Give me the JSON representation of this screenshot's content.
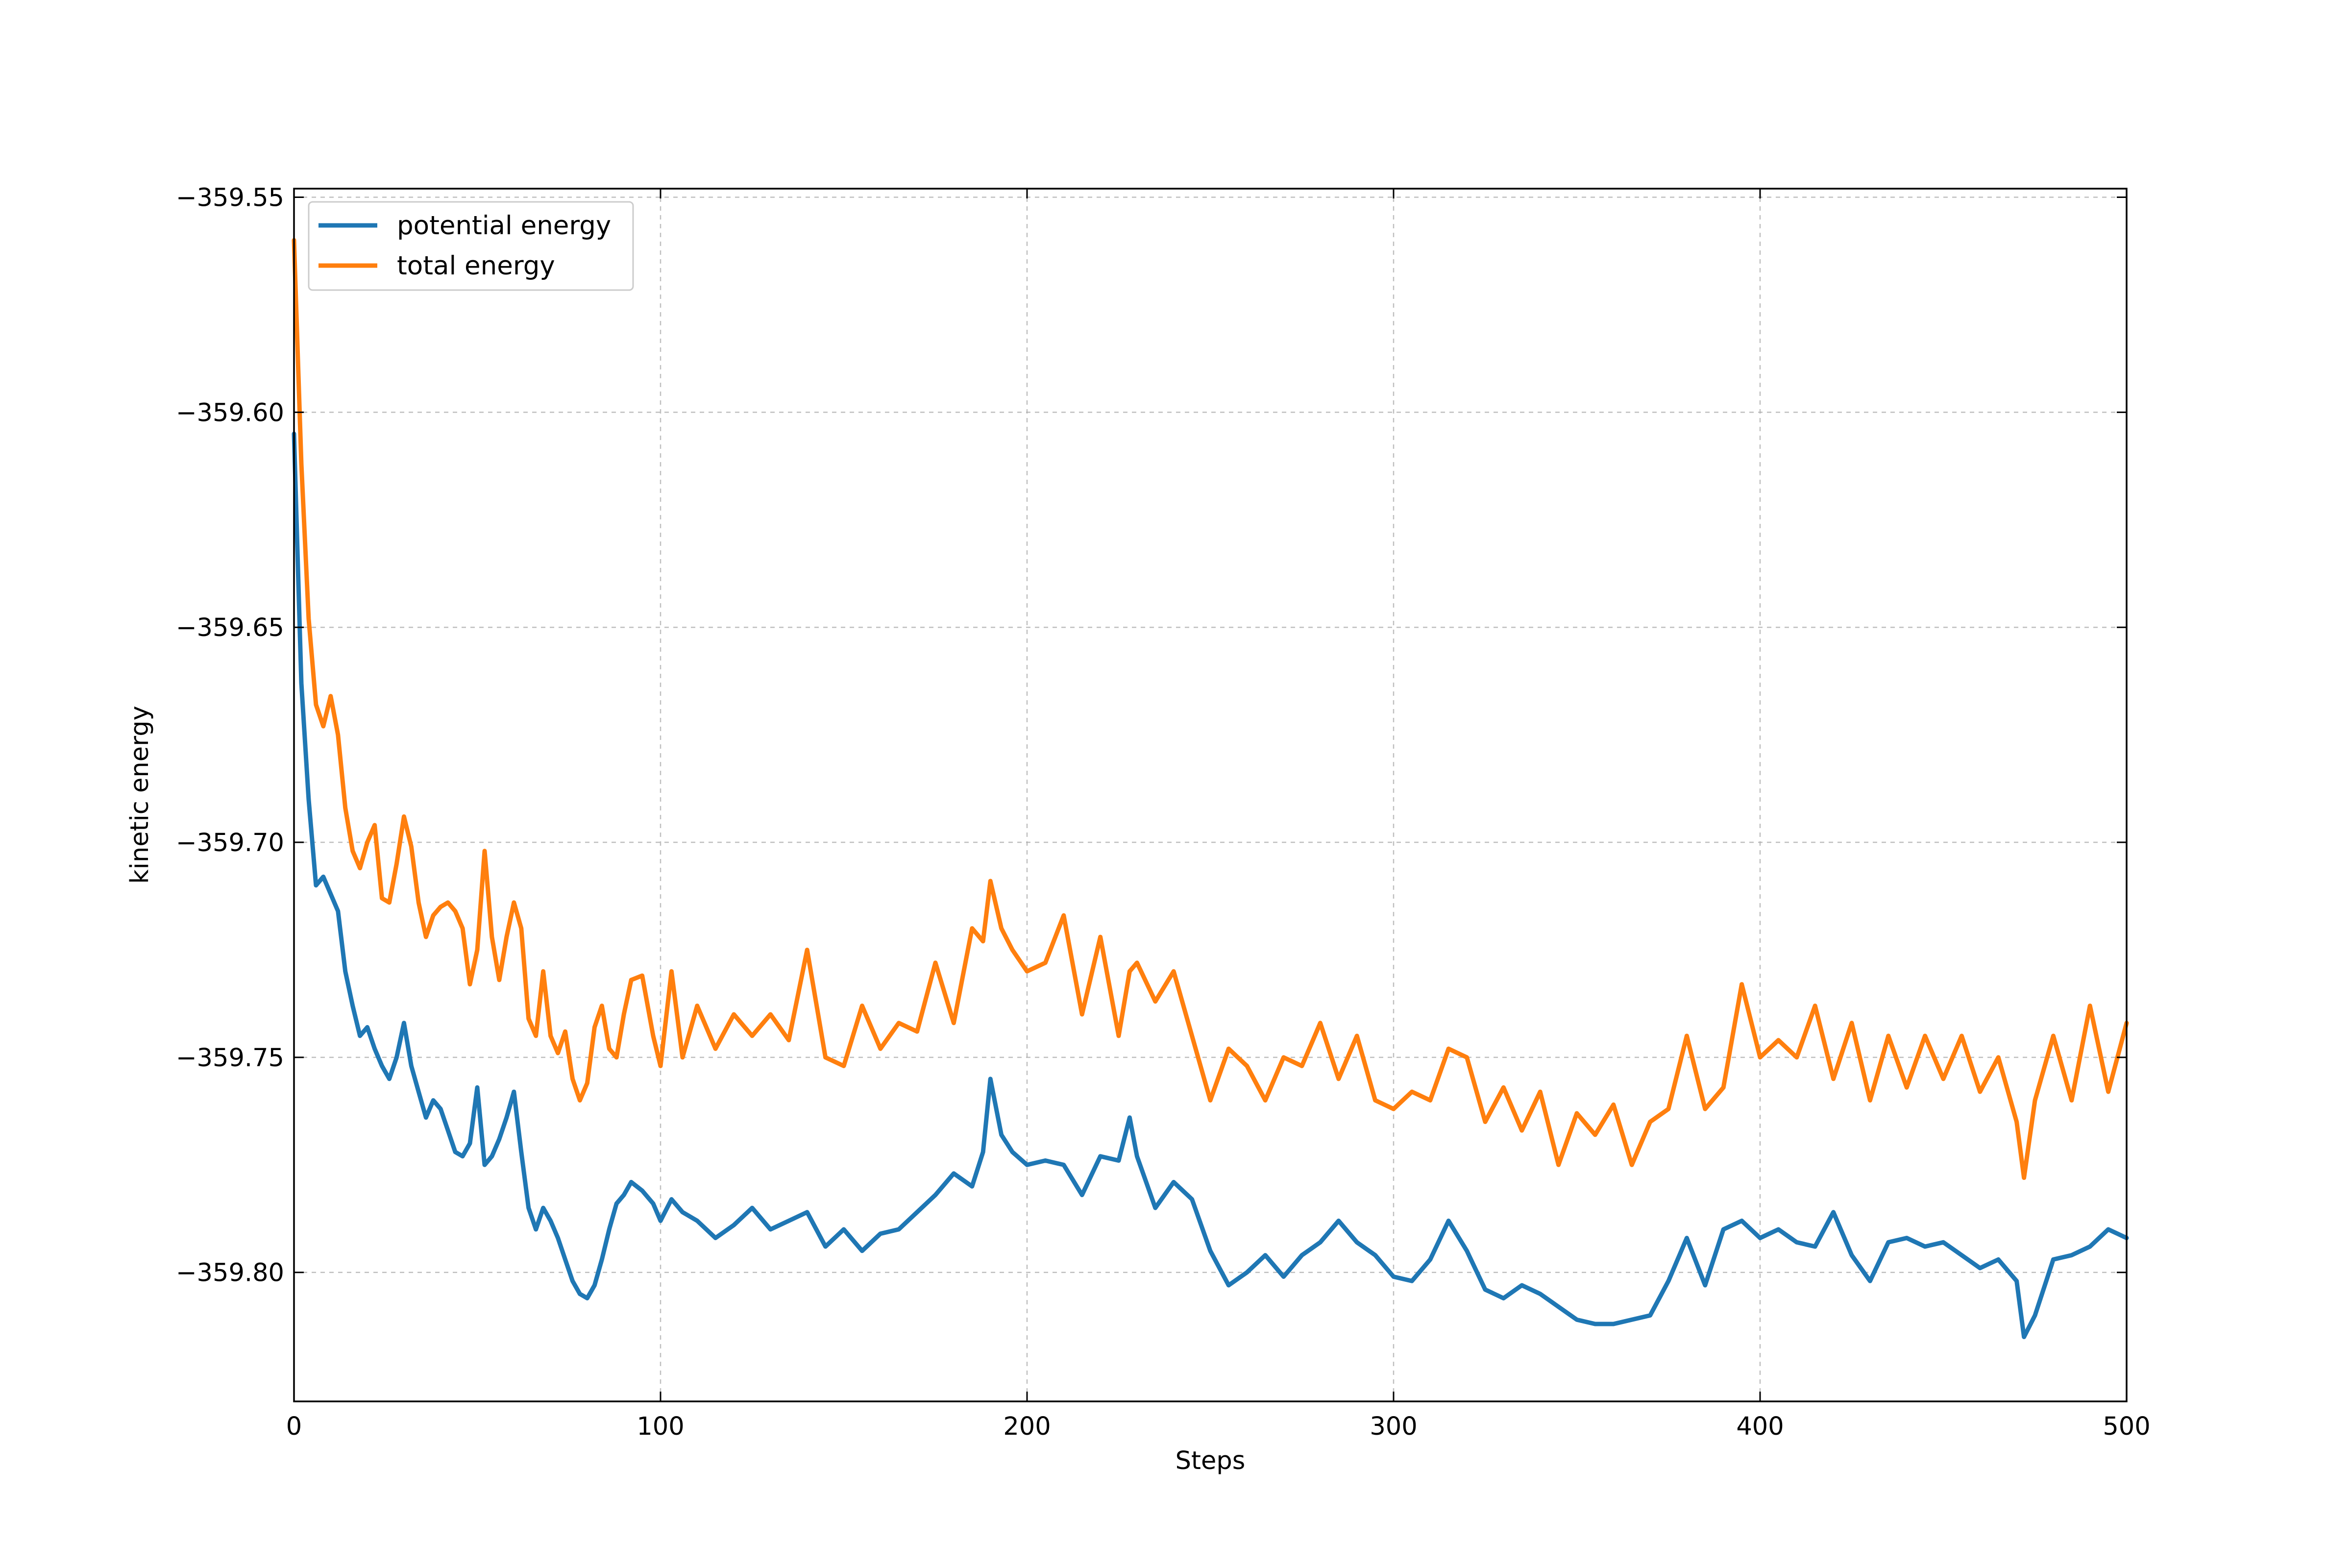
{
  "chart_data": {
    "type": "line",
    "title": "",
    "xlabel": "Steps",
    "ylabel": "kinetic energy",
    "xlim": [
      0,
      500
    ],
    "ylim": [
      -359.83,
      -359.548
    ],
    "xticks": [
      0,
      100,
      200,
      300,
      400,
      500
    ],
    "xtick_labels": [
      "0",
      "100",
      "200",
      "300",
      "400",
      "500"
    ],
    "yticks": [
      -359.55,
      -359.6,
      -359.65,
      -359.7,
      -359.75,
      -359.8
    ],
    "ytick_labels": [
      "−359.55",
      "−359.60",
      "−359.65",
      "−359.70",
      "−359.75",
      "−359.80"
    ],
    "grid": true,
    "legend_position": "top-left",
    "series": [
      {
        "name": "potential energy",
        "color": "#1f77b4",
        "x": [
          0,
          2,
          4,
          6,
          8,
          10,
          12,
          14,
          16,
          18,
          20,
          22,
          24,
          26,
          28,
          30,
          32,
          34,
          36,
          38,
          40,
          42,
          44,
          46,
          48,
          50,
          52,
          54,
          56,
          58,
          60,
          62,
          64,
          66,
          68,
          70,
          72,
          74,
          76,
          78,
          80,
          82,
          84,
          86,
          88,
          90,
          92,
          95,
          98,
          100,
          103,
          106,
          110,
          115,
          120,
          125,
          130,
          135,
          140,
          145,
          150,
          155,
          160,
          165,
          170,
          175,
          180,
          185,
          188,
          190,
          193,
          196,
          200,
          205,
          210,
          215,
          220,
          225,
          228,
          230,
          235,
          240,
          245,
          250,
          255,
          260,
          265,
          270,
          275,
          280,
          285,
          290,
          295,
          300,
          305,
          310,
          315,
          320,
          325,
          330,
          335,
          340,
          345,
          350,
          355,
          360,
          365,
          370,
          375,
          380,
          385,
          390,
          395,
          400,
          405,
          410,
          415,
          420,
          425,
          430,
          435,
          440,
          445,
          450,
          455,
          460,
          465,
          470,
          472,
          475,
          480,
          485,
          490,
          495,
          500
        ],
        "values": [
          -359.605,
          -359.663,
          -359.69,
          -359.71,
          -359.708,
          -359.712,
          -359.716,
          -359.73,
          -359.738,
          -359.745,
          -359.743,
          -359.748,
          -359.752,
          -359.755,
          -359.75,
          -359.742,
          -359.752,
          -359.758,
          -359.764,
          -359.76,
          -359.762,
          -359.767,
          -359.772,
          -359.773,
          -359.77,
          -359.757,
          -359.775,
          -359.773,
          -359.769,
          -359.764,
          -359.758,
          -359.772,
          -359.785,
          -359.79,
          -359.785,
          -359.788,
          -359.792,
          -359.797,
          -359.802,
          -359.805,
          -359.806,
          -359.803,
          -359.797,
          -359.79,
          -359.784,
          -359.782,
          -359.779,
          -359.781,
          -359.784,
          -359.788,
          -359.783,
          -359.786,
          -359.788,
          -359.792,
          -359.789,
          -359.785,
          -359.79,
          -359.788,
          -359.786,
          -359.794,
          -359.79,
          -359.795,
          -359.791,
          -359.79,
          -359.786,
          -359.782,
          -359.777,
          -359.78,
          -359.772,
          -359.755,
          -359.768,
          -359.772,
          -359.775,
          -359.774,
          -359.775,
          -359.782,
          -359.773,
          -359.774,
          -359.764,
          -359.773,
          -359.785,
          -359.779,
          -359.783,
          -359.795,
          -359.803,
          -359.8,
          -359.796,
          -359.801,
          -359.796,
          -359.793,
          -359.788,
          -359.793,
          -359.796,
          -359.801,
          -359.802,
          -359.797,
          -359.788,
          -359.795,
          -359.804,
          -359.806,
          -359.803,
          -359.805,
          -359.808,
          -359.811,
          -359.812,
          -359.812,
          -359.811,
          -359.81,
          -359.802,
          -359.792,
          -359.803,
          -359.79,
          -359.788,
          -359.792,
          -359.79,
          -359.793,
          -359.794,
          -359.786,
          -359.796,
          -359.802,
          -359.793,
          -359.792,
          -359.794,
          -359.793,
          -359.796,
          -359.799,
          -359.797,
          -359.802,
          -359.815,
          -359.81,
          -359.797,
          -359.796,
          -359.794,
          -359.79,
          -359.792
        ]
      },
      {
        "name": "total energy",
        "color": "#ff7f0e",
        "x": [
          0,
          2,
          4,
          6,
          8,
          10,
          12,
          14,
          16,
          18,
          20,
          22,
          24,
          26,
          28,
          30,
          32,
          34,
          36,
          38,
          40,
          42,
          44,
          46,
          48,
          50,
          52,
          54,
          56,
          58,
          60,
          62,
          64,
          66,
          68,
          70,
          72,
          74,
          76,
          78,
          80,
          82,
          84,
          86,
          88,
          90,
          92,
          95,
          98,
          100,
          103,
          106,
          110,
          115,
          120,
          125,
          130,
          135,
          140,
          145,
          150,
          155,
          160,
          165,
          170,
          175,
          180,
          185,
          188,
          190,
          193,
          196,
          200,
          205,
          210,
          215,
          220,
          225,
          228,
          230,
          235,
          240,
          245,
          250,
          255,
          260,
          265,
          270,
          275,
          280,
          285,
          290,
          295,
          300,
          305,
          310,
          315,
          320,
          325,
          330,
          335,
          340,
          345,
          350,
          355,
          360,
          365,
          370,
          375,
          380,
          385,
          390,
          395,
          400,
          405,
          410,
          415,
          420,
          425,
          430,
          435,
          440,
          445,
          450,
          455,
          460,
          465,
          470,
          472,
          475,
          480,
          485,
          490,
          495,
          500
        ],
        "values": [
          -359.56,
          -359.612,
          -359.648,
          -359.668,
          -359.673,
          -359.666,
          -359.675,
          -359.692,
          -359.702,
          -359.706,
          -359.7,
          -359.696,
          -359.713,
          -359.714,
          -359.705,
          -359.694,
          -359.701,
          -359.714,
          -359.722,
          -359.717,
          -359.715,
          -359.714,
          -359.716,
          -359.72,
          -359.733,
          -359.725,
          -359.702,
          -359.722,
          -359.732,
          -359.722,
          -359.714,
          -359.72,
          -359.741,
          -359.745,
          -359.73,
          -359.745,
          -359.749,
          -359.744,
          -359.755,
          -359.76,
          -359.756,
          -359.743,
          -359.738,
          -359.748,
          -359.75,
          -359.74,
          -359.732,
          -359.731,
          -359.745,
          -359.752,
          -359.73,
          -359.75,
          -359.738,
          -359.748,
          -359.74,
          -359.745,
          -359.74,
          -359.746,
          -359.725,
          -359.75,
          -359.752,
          -359.738,
          -359.748,
          -359.742,
          -359.744,
          -359.728,
          -359.742,
          -359.72,
          -359.723,
          -359.709,
          -359.72,
          -359.725,
          -359.73,
          -359.728,
          -359.717,
          -359.74,
          -359.722,
          -359.745,
          -359.73,
          -359.728,
          -359.737,
          -359.73,
          -359.745,
          -359.76,
          -359.748,
          -359.752,
          -359.76,
          -359.75,
          -359.752,
          -359.742,
          -359.755,
          -359.745,
          -359.76,
          -359.762,
          -359.758,
          -359.76,
          -359.748,
          -359.75,
          -359.765,
          -359.757,
          -359.767,
          -359.758,
          -359.775,
          -359.763,
          -359.768,
          -359.761,
          -359.775,
          -359.765,
          -359.762,
          -359.745,
          -359.762,
          -359.757,
          -359.733,
          -359.75,
          -359.746,
          -359.75,
          -359.738,
          -359.755,
          -359.742,
          -359.76,
          -359.745,
          -359.757,
          -359.745,
          -359.755,
          -359.745,
          -359.758,
          -359.75,
          -359.765,
          -359.778,
          -359.76,
          -359.745,
          -359.76,
          -359.738,
          -359.758,
          -359.742
        ]
      }
    ]
  }
}
